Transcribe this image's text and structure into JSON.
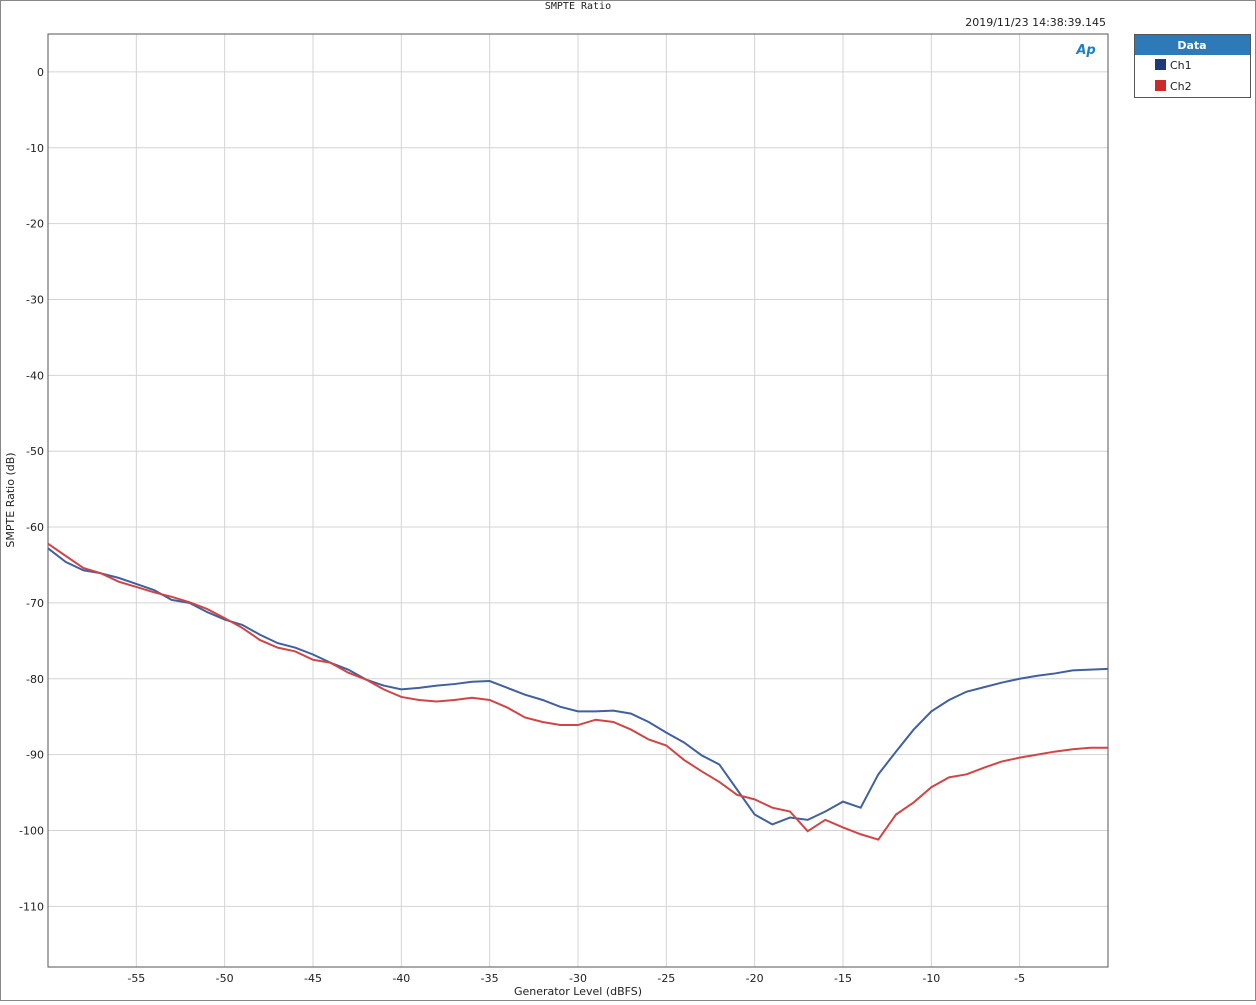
{
  "chart_data": {
    "type": "line",
    "title": "SMPTE Ratio",
    "timestamp": "2019/11/23 14:38:39.145",
    "logo": "Ap",
    "x_label": "Generator Level (dBFS)",
    "y_label": "SMPTE Ratio (dB)",
    "legend_title": "Data",
    "legend_position": "outside-right",
    "grid": true,
    "xlim": [
      -60,
      0
    ],
    "ylim": [
      -118,
      5
    ],
    "xticks": [
      -55,
      -50,
      -45,
      -40,
      -35,
      -30,
      -25,
      -20,
      -15,
      -10,
      -5
    ],
    "yticks": [
      0,
      -10,
      -20,
      -30,
      -40,
      -50,
      -60,
      -70,
      -80,
      -90,
      -100,
      -110
    ],
    "x": [
      -60,
      -59,
      -58,
      -57,
      -56,
      -55,
      -54,
      -53,
      -52,
      -51,
      -50,
      -49,
      -48,
      -47,
      -46,
      -45,
      -44,
      -43,
      -42,
      -41,
      -40,
      -39,
      -38,
      -37,
      -36,
      -35,
      -34,
      -33,
      -32,
      -31,
      -30,
      -29,
      -28,
      -27,
      -26,
      -25,
      -24,
      -23,
      -22,
      -21,
      -20,
      -19,
      -18,
      -17,
      -16,
      -15,
      -14,
      -13,
      -12,
      -11,
      -10,
      -9,
      -8,
      -7,
      -6,
      -5,
      -4,
      -3,
      -2,
      -1,
      0
    ],
    "series": [
      {
        "name": "Ch1",
        "color": "#41609e",
        "legend_color": "#1f3a7a",
        "values": [
          -62.8,
          -64.6,
          -65.7,
          -66.1,
          -66.7,
          -67.5,
          -68.3,
          -69.6,
          -70,
          -71.2,
          -72.2,
          -72.9,
          -74.2,
          -75.3,
          -75.9,
          -76.8,
          -77.9,
          -78.8,
          -80.1,
          -80.9,
          -81.4,
          -81.2,
          -80.9,
          -80.7,
          -80.4,
          -80.3,
          -81.2,
          -82.1,
          -82.8,
          -83.7,
          -84.3,
          -84.3,
          -84.2,
          -84.6,
          -85.7,
          -87.1,
          -88.4,
          -90.1,
          -91.3,
          -94.6,
          -97.9,
          -99.2,
          -98.3,
          -98.6,
          -97.5,
          -96.2,
          -97,
          -92.6,
          -89.6,
          -86.7,
          -84.3,
          -82.8,
          -81.7,
          -81.1,
          -80.5,
          -80,
          -79.6,
          -79.3,
          -78.9,
          -78.8,
          -78.7
        ]
      },
      {
        "name": "Ch2",
        "color": "#d04545",
        "legend_color": "#cc2a2a",
        "values": [
          -62.2,
          -63.8,
          -65.4,
          -66.1,
          -67.2,
          -67.9,
          -68.6,
          -69.2,
          -69.9,
          -70.8,
          -72,
          -73.3,
          -74.9,
          -75.9,
          -76.4,
          -77.5,
          -77.9,
          -79.2,
          -80.1,
          -81.4,
          -82.4,
          -82.8,
          -83,
          -82.8,
          -82.5,
          -82.8,
          -83.8,
          -85.1,
          -85.7,
          -86.1,
          -86.1,
          -85.4,
          -85.7,
          -86.7,
          -88,
          -88.8,
          -90.7,
          -92.2,
          -93.6,
          -95.3,
          -95.9,
          -97,
          -97.5,
          -100.1,
          -98.6,
          -99.6,
          -100.5,
          -101.2,
          -97.9,
          -96.3,
          -94.3,
          -93,
          -92.6,
          -91.7,
          -90.9,
          -90.4,
          -90,
          -89.6,
          -89.3,
          -89.1,
          -89.1
        ]
      }
    ]
  }
}
